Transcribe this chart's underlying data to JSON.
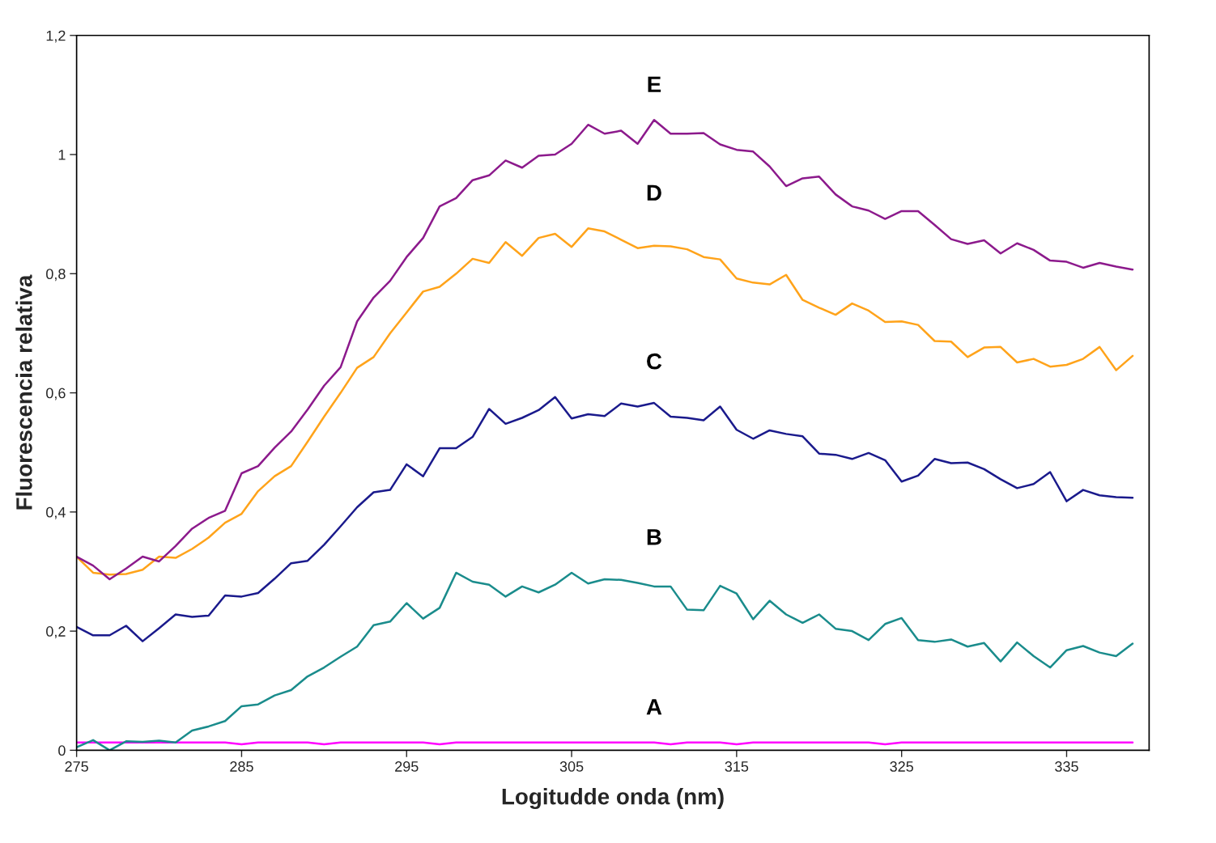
{
  "chart_data": {
    "type": "line",
    "xlabel": "Logitudde onda (nm)",
    "ylabel": "Fluorescencia relativa",
    "x": [
      275,
      276,
      277,
      278,
      279,
      280,
      281,
      282,
      283,
      284,
      285,
      286,
      287,
      288,
      289,
      290,
      291,
      292,
      293,
      294,
      295,
      296,
      297,
      298,
      299,
      300,
      301,
      302,
      303,
      304,
      305,
      306,
      307,
      308,
      309,
      310,
      311,
      312,
      313,
      314,
      315,
      316,
      317,
      318,
      319,
      320,
      321,
      322,
      323,
      324,
      325,
      326,
      327,
      328,
      329,
      330,
      331,
      332,
      333,
      334,
      335,
      336,
      337,
      338,
      339
    ],
    "xlim": [
      275,
      340
    ],
    "xticks": [
      275,
      285,
      295,
      305,
      315,
      325,
      335
    ],
    "ylim": [
      0,
      1.2
    ],
    "yticks": [
      {
        "value": 0,
        "label": "0"
      },
      {
        "value": 0.2,
        "label": "0,2"
      },
      {
        "value": 0.4,
        "label": "0,4"
      },
      {
        "value": 0.6,
        "label": "0,6"
      },
      {
        "value": 0.8,
        "label": "0,8"
      },
      {
        "value": 1,
        "label": "1"
      },
      {
        "value": 1.2,
        "label": "1,2"
      }
    ],
    "grid": false,
    "marker": "none",
    "line_style": "solid",
    "series": [
      {
        "name": "A",
        "color": "#ff00ff",
        "values": [
          0.013,
          0.013,
          0.013,
          0.013,
          0.013,
          0.013,
          0.013,
          0.013,
          0.013,
          0.013,
          0.01,
          0.013,
          0.013,
          0.013,
          0.013,
          0.01,
          0.013,
          0.013,
          0.013,
          0.013,
          0.013,
          0.013,
          0.01,
          0.013,
          0.013,
          0.013,
          0.013,
          0.013,
          0.013,
          0.013,
          0.013,
          0.013,
          0.013,
          0.013,
          0.013,
          0.013,
          0.01,
          0.013,
          0.013,
          0.013,
          0.01,
          0.013,
          0.013,
          0.013,
          0.013,
          0.013,
          0.013,
          0.013,
          0.013,
          0.01,
          0.013,
          0.013,
          0.013,
          0.013,
          0.013,
          0.013,
          0.013,
          0.013,
          0.013,
          0.013,
          0.013,
          0.013,
          0.013,
          0.013,
          0.013
        ]
      },
      {
        "name": "B",
        "color": "#1a8c8c",
        "values": [
          0.005,
          0.017,
          0.0,
          0.015,
          0.014,
          0.016,
          0.013,
          0.033,
          0.04,
          0.049,
          0.074,
          0.077,
          0.092,
          0.101,
          0.124,
          0.139,
          0.157,
          0.174,
          0.21,
          0.216,
          0.247,
          0.221,
          0.239,
          0.298,
          0.283,
          0.278,
          0.258,
          0.275,
          0.265,
          0.278,
          0.298,
          0.28,
          0.287,
          0.286,
          0.281,
          0.275,
          0.275,
          0.236,
          0.235,
          0.276,
          0.263,
          0.22,
          0.251,
          0.228,
          0.214,
          0.228,
          0.204,
          0.2,
          0.185,
          0.212,
          0.222,
          0.185,
          0.182,
          0.186,
          0.174,
          0.18,
          0.149,
          0.181,
          0.158,
          0.139,
          0.168,
          0.175,
          0.164,
          0.158,
          0.179
        ]
      },
      {
        "name": "C",
        "color": "#1a1a8c",
        "values": [
          0.207,
          0.193,
          0.193,
          0.209,
          0.183,
          0.205,
          0.228,
          0.224,
          0.226,
          0.26,
          0.258,
          0.264,
          0.288,
          0.314,
          0.318,
          0.345,
          0.376,
          0.408,
          0.433,
          0.437,
          0.48,
          0.46,
          0.507,
          0.507,
          0.526,
          0.573,
          0.548,
          0.558,
          0.571,
          0.593,
          0.557,
          0.564,
          0.561,
          0.582,
          0.577,
          0.583,
          0.56,
          0.558,
          0.554,
          0.577,
          0.538,
          0.523,
          0.537,
          0.531,
          0.527,
          0.498,
          0.496,
          0.489,
          0.499,
          0.487,
          0.451,
          0.461,
          0.489,
          0.482,
          0.483,
          0.472,
          0.455,
          0.44,
          0.447,
          0.467,
          0.418,
          0.437,
          0.428,
          0.425,
          0.424
        ]
      },
      {
        "name": "D",
        "color": "#ffa31a",
        "values": [
          0.325,
          0.298,
          0.295,
          0.296,
          0.303,
          0.325,
          0.323,
          0.338,
          0.357,
          0.382,
          0.397,
          0.435,
          0.46,
          0.477,
          0.518,
          0.56,
          0.6,
          0.642,
          0.66,
          0.7,
          0.735,
          0.77,
          0.778,
          0.8,
          0.825,
          0.818,
          0.853,
          0.83,
          0.86,
          0.867,
          0.845,
          0.876,
          0.871,
          0.857,
          0.843,
          0.847,
          0.846,
          0.841,
          0.828,
          0.824,
          0.792,
          0.785,
          0.782,
          0.798,
          0.756,
          0.743,
          0.731,
          0.75,
          0.738,
          0.719,
          0.72,
          0.714,
          0.687,
          0.686,
          0.66,
          0.676,
          0.677,
          0.651,
          0.657,
          0.644,
          0.647,
          0.657,
          0.677,
          0.638,
          0.662
        ]
      },
      {
        "name": "E",
        "color": "#8c1a8c",
        "values": [
          0.325,
          0.31,
          0.287,
          0.305,
          0.325,
          0.317,
          0.343,
          0.372,
          0.39,
          0.402,
          0.465,
          0.477,
          0.508,
          0.535,
          0.572,
          0.612,
          0.643,
          0.72,
          0.76,
          0.788,
          0.828,
          0.86,
          0.913,
          0.927,
          0.957,
          0.965,
          0.99,
          0.978,
          0.998,
          1.0,
          1.018,
          1.05,
          1.035,
          1.04,
          1.018,
          1.058,
          1.035,
          1.035,
          1.036,
          1.017,
          1.008,
          1.005,
          0.98,
          0.947,
          0.96,
          0.963,
          0.933,
          0.913,
          0.906,
          0.892,
          0.905,
          0.905,
          0.882,
          0.858,
          0.85,
          0.856,
          0.834,
          0.851,
          0.84,
          0.822,
          0.82,
          0.81,
          0.818,
          0.812,
          0.807
        ]
      }
    ]
  }
}
